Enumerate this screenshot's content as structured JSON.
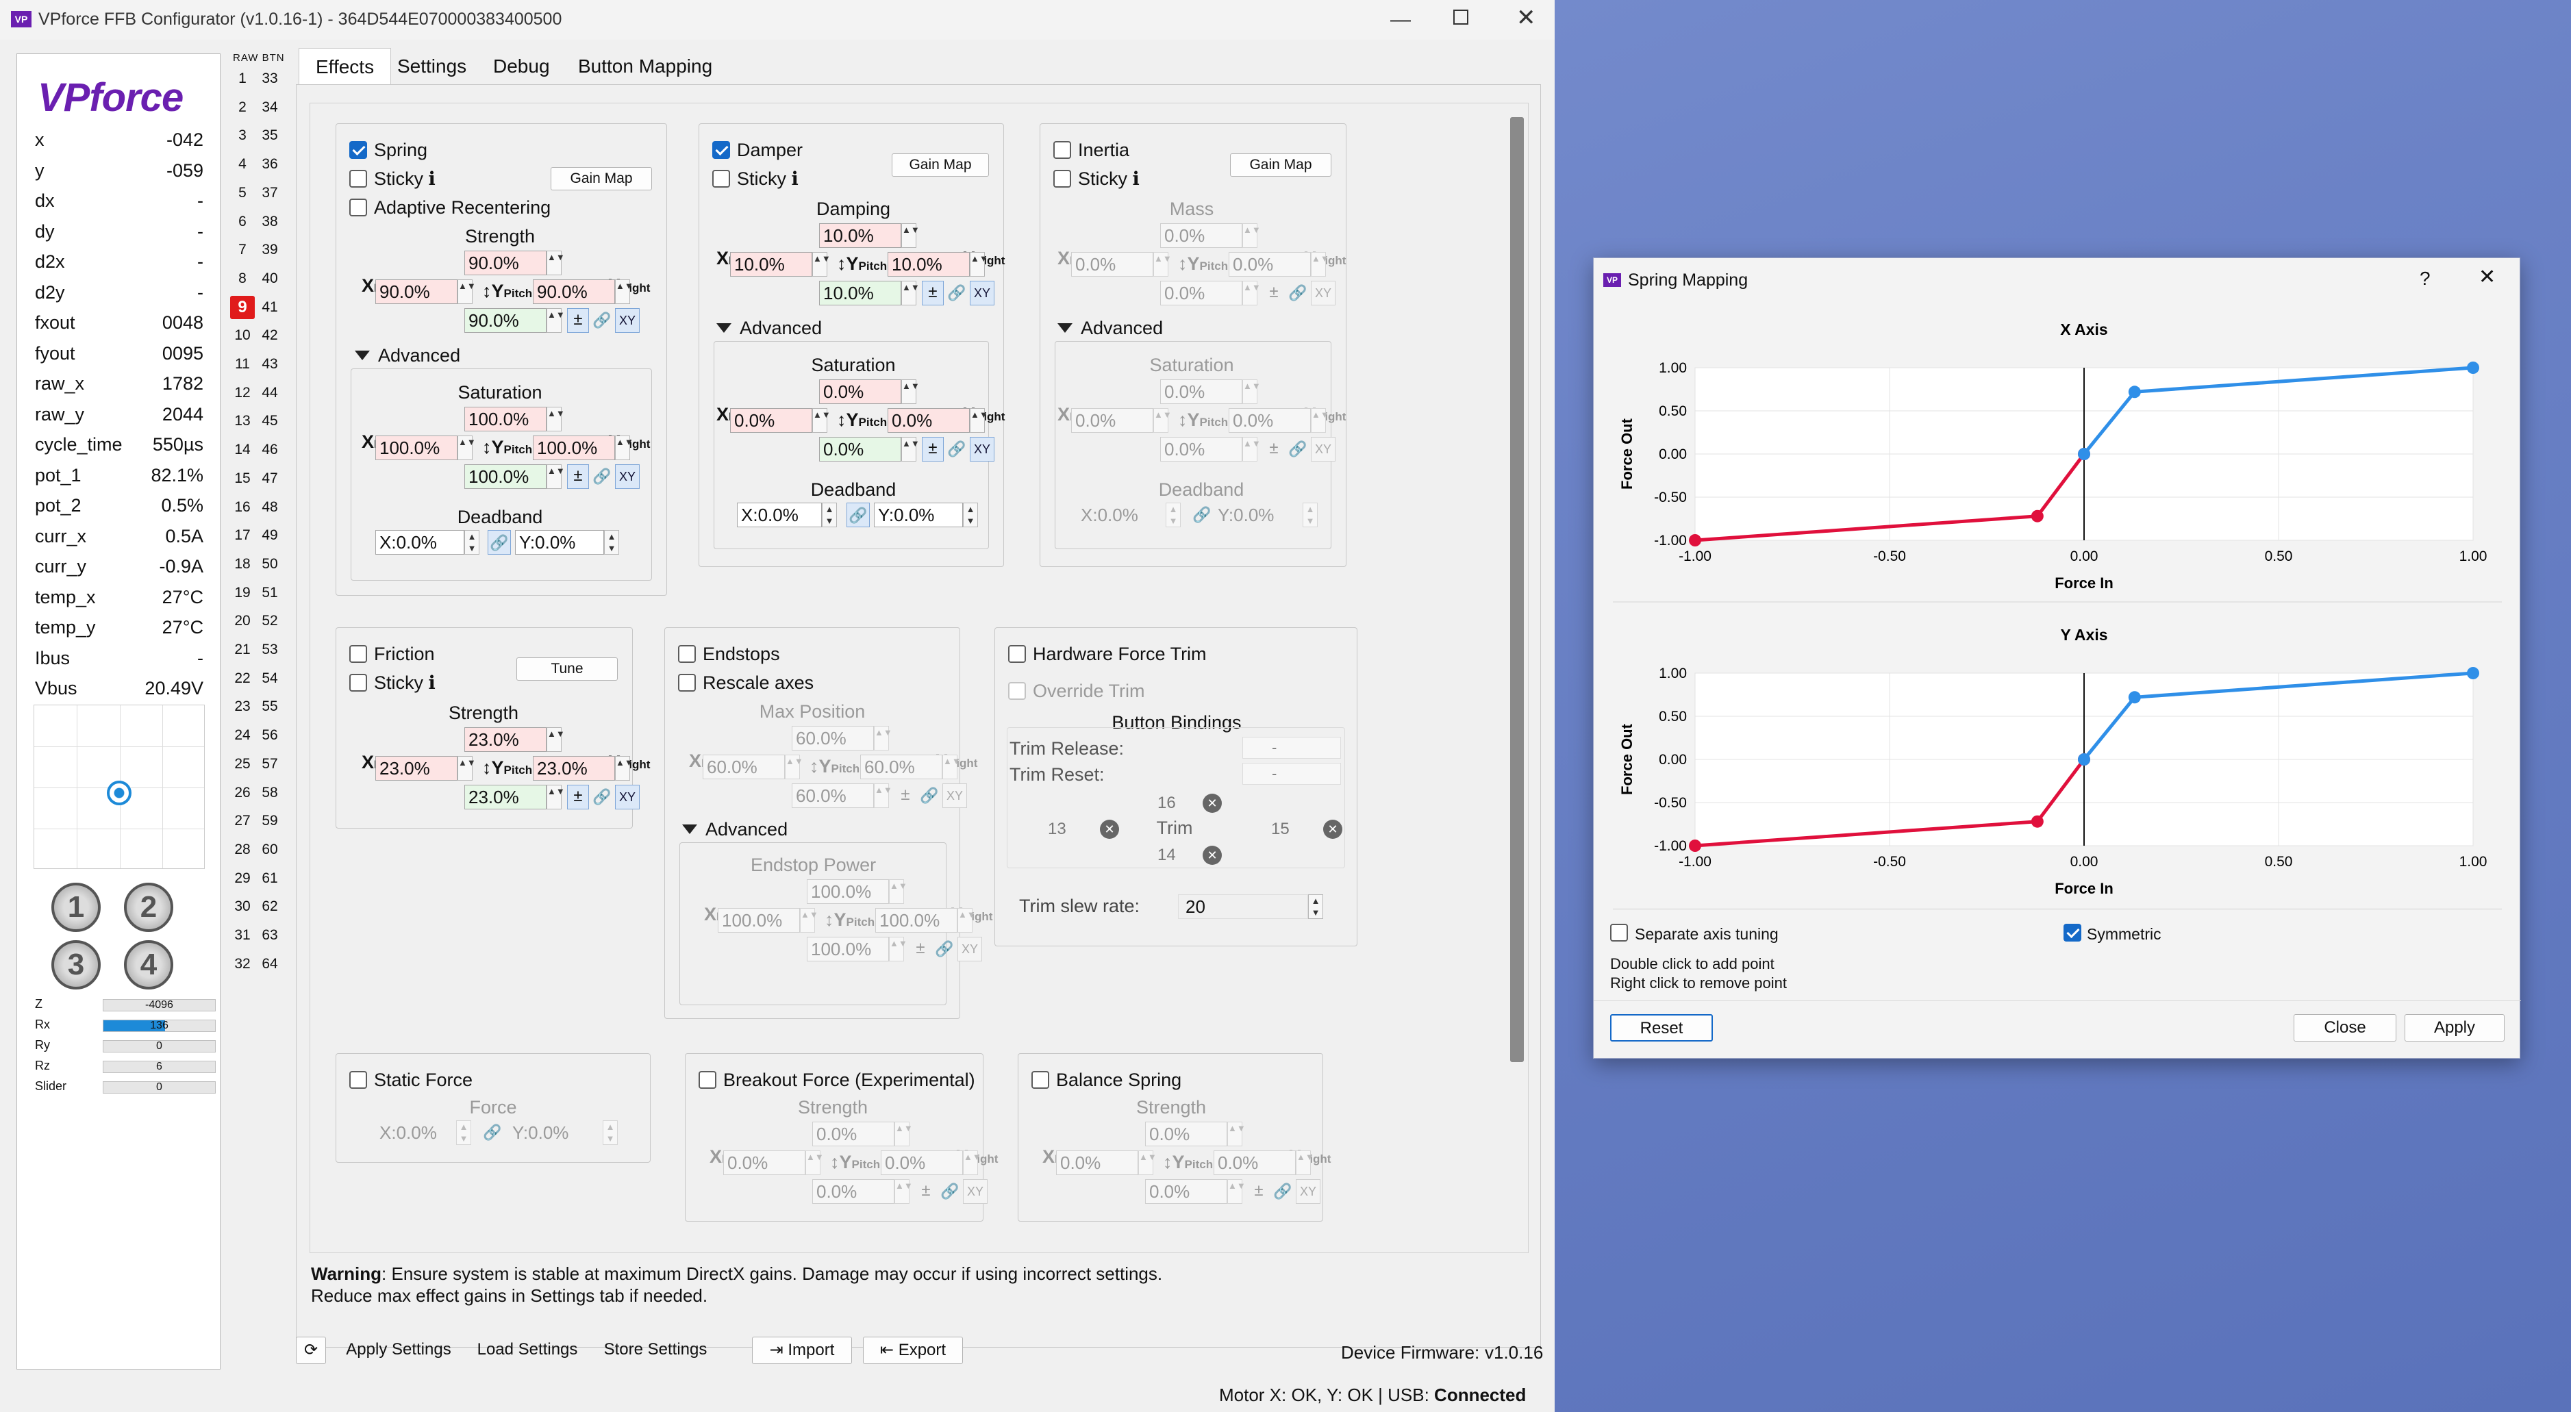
{
  "window": {
    "title": "VPforce FFB Configurator (v1.0.16-1) - 364D544E070000383400500"
  },
  "logo": {
    "text": "VPforce"
  },
  "readouts": [
    {
      "label": "x",
      "value": "-042"
    },
    {
      "label": "y",
      "value": "-059"
    },
    {
      "label": "dx",
      "value": "-"
    },
    {
      "label": "dy",
      "value": "-"
    },
    {
      "label": "d2x",
      "value": "-"
    },
    {
      "label": "d2y",
      "value": "-"
    },
    {
      "label": "fxout",
      "value": "0048"
    },
    {
      "label": "fyout",
      "value": "0095"
    },
    {
      "label": "raw_x",
      "value": "1782"
    },
    {
      "label": "raw_y",
      "value": "2044"
    },
    {
      "label": "cycle_time",
      "value": "550µs"
    },
    {
      "label": "pot_1",
      "value": "82.1%"
    },
    {
      "label": "pot_2",
      "value": "0.5%"
    },
    {
      "label": "curr_x",
      "value": "0.5A"
    },
    {
      "label": "curr_y",
      "value": "-0.9A"
    },
    {
      "label": "temp_x",
      "value": "27°C"
    },
    {
      "label": "temp_y",
      "value": "27°C"
    },
    {
      "label": "Ibus",
      "value": "-"
    },
    {
      "label": "Vbus",
      "value": "20.49V"
    }
  ],
  "hat_buttons": [
    "1",
    "2",
    "3",
    "4"
  ],
  "axes": [
    {
      "label": "Z",
      "value": "-4096",
      "fill": 0
    },
    {
      "label": "Rx",
      "value": "136",
      "fill": 0.55
    },
    {
      "label": "Ry",
      "value": "0",
      "fill": 0
    },
    {
      "label": "Rz",
      "value": "6",
      "fill": 0
    },
    {
      "label": "Slider",
      "value": "0",
      "fill": 0
    }
  ],
  "raw_header": "RAW BTN",
  "raw_col1": [
    "1",
    "2",
    "3",
    "4",
    "5",
    "6",
    "7",
    "8",
    "9",
    "10",
    "11",
    "12",
    "13",
    "14",
    "15",
    "16",
    "17",
    "18",
    "19",
    "20",
    "21",
    "22",
    "23",
    "24",
    "25",
    "26",
    "27",
    "28",
    "29",
    "30",
    "31",
    "32"
  ],
  "raw_col2": [
    "33",
    "34",
    "35",
    "36",
    "37",
    "38",
    "39",
    "40",
    "41",
    "42",
    "43",
    "44",
    "45",
    "46",
    "47",
    "48",
    "49",
    "50",
    "51",
    "52",
    "53",
    "54",
    "55",
    "56",
    "57",
    "58",
    "59",
    "60",
    "61",
    "62",
    "63",
    "64"
  ],
  "raw_active": "9",
  "tabs": [
    "Effects",
    "Settings",
    "Debug",
    "Button Mapping"
  ],
  "common": {
    "x_left": "X",
    "left_sub": "Left",
    "x_right": "X",
    "right_sub": "Right",
    "y_pitch": "↕Y",
    "pitch_sub": "Pitch",
    "advanced": "Advanced",
    "pm": "±",
    "xy": "XY",
    "link": "🔗"
  },
  "spring": {
    "title": "Spring",
    "sticky": "Sticky ℹ",
    "gain_map": "Gain Map",
    "adaptive": "Adaptive Recentering",
    "strength": "Strength",
    "xl": "90.0%",
    "top": "90.0%",
    "xr": "90.0%",
    "mid_left": "90.0%",
    "mid_right": "90.0%",
    "bottom": "90.0%",
    "saturation": "Saturation",
    "sat_top": "100.0%",
    "sat_left": "100.0%",
    "sat_right": "100.0%",
    "sat_bottom": "100.0%",
    "deadband": "Deadband",
    "db_x": "X:0.0%",
    "db_y": "Y:0.0%"
  },
  "damper": {
    "title": "Damper",
    "sticky": "Sticky ℹ",
    "gain_map": "Gain Map",
    "damping": "Damping",
    "top": "10.0%",
    "mid_left": "10.0%",
    "mid_right": "10.0%",
    "bottom": "10.0%",
    "saturation": "Saturation",
    "sat_top": "0.0%",
    "sat_left": "0.0%",
    "sat_right": "0.0%",
    "sat_bottom": "0.0%",
    "deadband": "Deadband",
    "db_x": "X:0.0%",
    "db_y": "Y:0.0%"
  },
  "inertia": {
    "title": "Inertia",
    "sticky": "Sticky ℹ",
    "gain_map": "Gain Map",
    "mass": "Mass",
    "top": "0.0%",
    "mid_left": "0.0%",
    "mid_right": "0.0%",
    "bottom": "0.0%",
    "saturation": "Saturation",
    "sat_top": "0.0%",
    "sat_left": "0.0%",
    "sat_right": "0.0%",
    "sat_bottom": "0.0%",
    "deadband": "Deadband",
    "db_x": "X:0.0%",
    "db_y": "Y:0.0%"
  },
  "friction": {
    "title": "Friction",
    "sticky": "Sticky ℹ",
    "tune": "Tune",
    "strength": "Strength",
    "top": "23.0%",
    "mid_left": "23.0%",
    "mid_right": "23.0%",
    "bottom": "23.0%"
  },
  "endstops": {
    "title": "Endstops",
    "rescale": "Rescale axes",
    "max_position": "Max Position",
    "top": "60.0%",
    "mid_left": "60.0%",
    "mid_right": "60.0%",
    "bottom": "60.0%",
    "endstop_power": "Endstop Power",
    "p_top": "100.0%",
    "p_left": "100.0%",
    "p_right": "100.0%",
    "p_bottom": "100.0%"
  },
  "trim": {
    "title": "Hardware Force Trim",
    "override": "Override Trim",
    "bindings": "Button Bindings",
    "release": "Trim Release:",
    "reset": "Trim Reset:",
    "release_val": "-",
    "reset_val": "-",
    "b16": "16",
    "b13": "13",
    "b15": "15",
    "b14": "14",
    "trim": "Trim",
    "slew_label": "Trim slew rate:",
    "slew": "20"
  },
  "static_force": {
    "title": "Static Force",
    "force": "Force",
    "x": "X:0.0%",
    "y": "Y:0.0%"
  },
  "breakout": {
    "title": "Breakout Force (Experimental)",
    "strength": "Strength",
    "top": "0.0%",
    "mid_left": "0.0%",
    "mid_right": "0.0%",
    "bottom": "0.0%"
  },
  "balance": {
    "title": "Balance Spring",
    "strength": "Strength",
    "top": "0.0%",
    "mid_left": "0.0%",
    "mid_right": "0.0%",
    "bottom": "0.0%"
  },
  "warning": {
    "bold": "Warning",
    "line1": ": Ensure system is stable at maximum DirectX gains. Damage may occur if using incorrect settings.",
    "line2": "Reduce max effect gains in Settings tab if needed."
  },
  "bottom": {
    "refresh": "⟳",
    "apply": "Apply Settings",
    "load": "Load Settings",
    "store": "Store Settings",
    "import": "Import",
    "export": "Export",
    "fw_label": "Device Firmware:",
    "fw": "v1.0.16",
    "status": "Motor X: OK, Y: OK | USB: ",
    "status_bold": "Connected"
  },
  "dialog": {
    "title": "Spring Mapping",
    "help": "?",
    "close_x": "✕",
    "x_axis": "X Axis",
    "y_axis": "Y Axis",
    "force_out": "Force Out",
    "force_in": "Force In",
    "separate": "Separate axis tuning",
    "symmetric": "Symmetric",
    "hint1": "Double click to add point",
    "hint2": "Right click to remove point",
    "reset": "Reset",
    "close": "Close",
    "apply": "Apply"
  },
  "chart_data": [
    {
      "type": "line",
      "title": "X Axis",
      "xlabel": "Force In",
      "ylabel": "Force Out",
      "xlim": [
        -1,
        1
      ],
      "ylim": [
        -1,
        1
      ],
      "xticks": [
        "-1.00",
        "-0.50",
        "0.00",
        "0.50",
        "1.00"
      ],
      "yticks": [
        "1.00",
        "0.50",
        "0.00",
        "-0.50",
        "-1.00"
      ],
      "series": [
        {
          "color": "#e0103c",
          "points": [
            [
              -1,
              -1
            ],
            [
              -0.12,
              -0.72
            ],
            [
              0,
              0
            ]
          ]
        },
        {
          "color": "#2f8fe8",
          "points": [
            [
              0,
              0
            ],
            [
              0.13,
              0.72
            ],
            [
              1,
              1
            ]
          ]
        }
      ]
    },
    {
      "type": "line",
      "title": "Y Axis",
      "xlabel": "Force In",
      "ylabel": "Force Out",
      "xlim": [
        -1,
        1
      ],
      "ylim": [
        -1,
        1
      ],
      "xticks": [
        "-1.00",
        "-0.50",
        "0.00",
        "0.50",
        "1.00"
      ],
      "yticks": [
        "1.00",
        "0.50",
        "0.00",
        "-0.50",
        "-1.00"
      ],
      "series": [
        {
          "color": "#e0103c",
          "points": [
            [
              -1,
              -1
            ],
            [
              -0.12,
              -0.72
            ],
            [
              0,
              0
            ]
          ]
        },
        {
          "color": "#2f8fe8",
          "points": [
            [
              0,
              0
            ],
            [
              0.13,
              0.72
            ],
            [
              1,
              1
            ]
          ]
        }
      ]
    }
  ]
}
